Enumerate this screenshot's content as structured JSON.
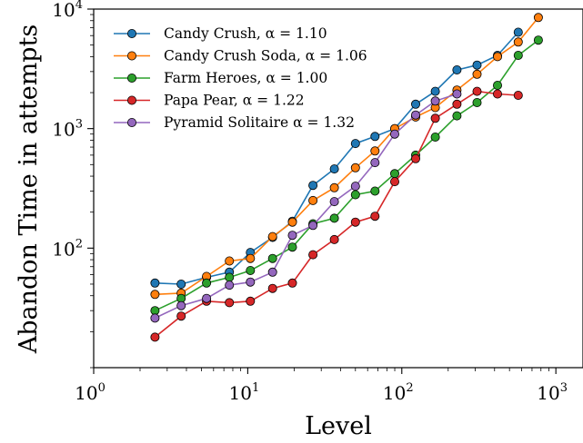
{
  "chart_data": {
    "type": "line",
    "xscale": "log",
    "yscale": "log",
    "xlim": [
      1,
      1500
    ],
    "ylim": [
      10,
      10000
    ],
    "xlabel": "Level",
    "ylabel": "Abandon Time in attempts",
    "x_ticks": [
      {
        "value": 1,
        "base": "10",
        "exp": "0"
      },
      {
        "value": 10,
        "base": "10",
        "exp": "1"
      },
      {
        "value": 100,
        "base": "10",
        "exp": "2"
      },
      {
        "value": 1000,
        "base": "10",
        "exp": "3"
      }
    ],
    "y_ticks": [
      {
        "value": 100,
        "base": "10",
        "exp": "2"
      },
      {
        "value": 1000,
        "base": "10",
        "exp": "3"
      },
      {
        "value": 10000,
        "base": "10",
        "exp": "4"
      }
    ],
    "grid": false,
    "legend_position": "top-left",
    "series": [
      {
        "name": "Candy Crush, α = 1.10",
        "color": "#1f77b4",
        "points": [
          [
            2.5,
            51
          ],
          [
            3.7,
            50
          ],
          [
            5.4,
            57
          ],
          [
            7.6,
            63
          ],
          [
            10.4,
            92
          ],
          [
            14.5,
            123
          ],
          [
            19.5,
            168
          ],
          [
            26.5,
            335
          ],
          [
            36.5,
            460
          ],
          [
            50,
            750
          ],
          [
            67,
            860
          ],
          [
            90,
            1000
          ],
          [
            123,
            1600
          ],
          [
            165,
            2050
          ],
          [
            228,
            3100
          ],
          [
            308,
            3400
          ],
          [
            418,
            4100
          ],
          [
            570,
            6400
          ]
        ]
      },
      {
        "name": "Candy Crush Soda, α = 1.06",
        "color": "#ff7f0e",
        "points": [
          [
            2.5,
            41
          ],
          [
            3.7,
            42
          ],
          [
            5.4,
            58
          ],
          [
            7.6,
            78
          ],
          [
            10.4,
            82
          ],
          [
            14.5,
            125
          ],
          [
            19.5,
            165
          ],
          [
            26.5,
            250
          ],
          [
            36.5,
            320
          ],
          [
            50,
            470
          ],
          [
            67,
            650
          ],
          [
            90,
            1000
          ],
          [
            123,
            1250
          ],
          [
            165,
            1500
          ],
          [
            228,
            2100
          ],
          [
            308,
            2850
          ],
          [
            418,
            4000
          ],
          [
            570,
            5300
          ],
          [
            770,
            8500
          ]
        ]
      },
      {
        "name": "Farm Heroes, α = 1.00",
        "color": "#2ca02c",
        "points": [
          [
            2.5,
            30
          ],
          [
            3.7,
            38
          ],
          [
            5.4,
            51
          ],
          [
            7.6,
            57
          ],
          [
            10.4,
            65
          ],
          [
            14.5,
            82
          ],
          [
            19.5,
            102
          ],
          [
            26.5,
            160
          ],
          [
            36.5,
            178
          ],
          [
            50,
            280
          ],
          [
            67,
            300
          ],
          [
            90,
            420
          ],
          [
            123,
            600
          ],
          [
            165,
            850
          ],
          [
            228,
            1280
          ],
          [
            308,
            1650
          ],
          [
            418,
            2300
          ],
          [
            570,
            4100
          ],
          [
            770,
            5500
          ]
        ]
      },
      {
        "name": "Papa Pear, α = 1.22",
        "color": "#d62728",
        "points": [
          [
            2.5,
            18
          ],
          [
            3.7,
            27
          ],
          [
            5.4,
            36
          ],
          [
            7.6,
            35
          ],
          [
            10.4,
            36
          ],
          [
            14.5,
            46
          ],
          [
            19.5,
            51
          ],
          [
            26.5,
            88
          ],
          [
            36.5,
            118
          ],
          [
            50,
            165
          ],
          [
            67,
            185
          ],
          [
            90,
            360
          ],
          [
            123,
            560
          ],
          [
            165,
            1220
          ],
          [
            228,
            1600
          ],
          [
            308,
            2050
          ],
          [
            418,
            1950
          ],
          [
            570,
            1900
          ]
        ]
      },
      {
        "name": "Pyramid Solitaire α = 1.32",
        "color": "#9467bd",
        "points": [
          [
            2.5,
            26
          ],
          [
            3.7,
            33
          ],
          [
            5.4,
            38
          ],
          [
            7.6,
            49
          ],
          [
            10.4,
            52
          ],
          [
            14.5,
            63
          ],
          [
            19.5,
            128
          ],
          [
            26.5,
            155
          ],
          [
            36.5,
            245
          ],
          [
            50,
            330
          ],
          [
            67,
            520
          ],
          [
            90,
            900
          ],
          [
            123,
            1300
          ],
          [
            165,
            1700
          ],
          [
            228,
            1950
          ]
        ]
      }
    ]
  }
}
